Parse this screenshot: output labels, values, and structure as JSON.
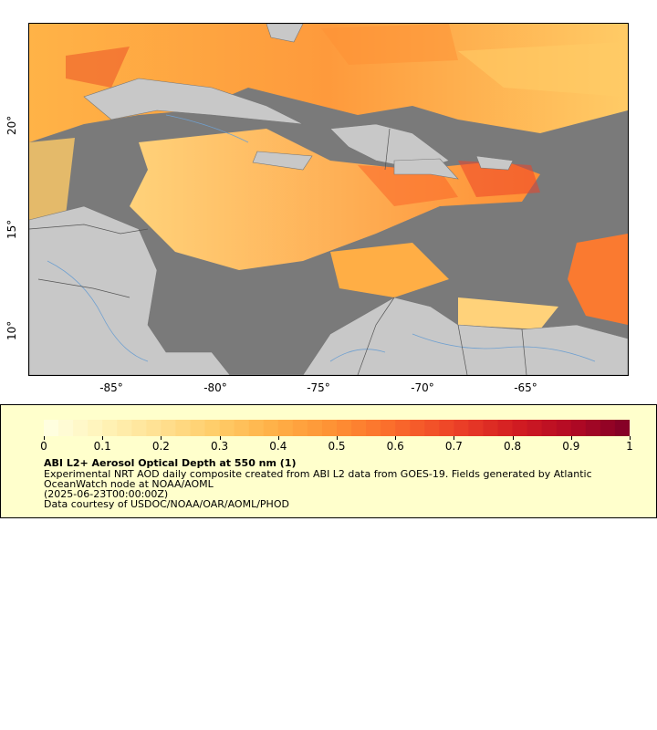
{
  "map": {
    "x_ticks": [
      "-85°",
      "-80°",
      "-75°",
      "-70°",
      "-65°"
    ],
    "y_ticks": [
      "20°",
      "15°",
      "10°"
    ],
    "lon_range": [
      -89,
      -60
    ],
    "lat_range": [
      8,
      25
    ],
    "colors": {
      "no_data": "#7a7a7a",
      "land": "#c8c8c8",
      "borders": "#555555",
      "rivers": "#6fa0d0"
    }
  },
  "legend": {
    "colorbar_labels": [
      "0",
      "0.1",
      "0.2",
      "0.3",
      "0.4",
      "0.5",
      "0.6",
      "0.7",
      "0.8",
      "0.9",
      "1"
    ],
    "colorbar_range": [
      0,
      1
    ],
    "colormap": [
      "#ffffe5",
      "#fff3b8",
      "#ffe090",
      "#ffcb66",
      "#ffae45",
      "#fe8f33",
      "#fa6a2b",
      "#ed4328",
      "#d41e22",
      "#b30924",
      "#800026"
    ],
    "title": "ABI L2+ Aerosol Optical Depth at 550 nm (1)",
    "line1": "Experimental NRT AOD daily composite created from ABI L2 data from GOES-19. Fields generated by Atlantic",
    "line2": "OceanWatch node at NOAA/AOML",
    "line3": "(2025-06-23T00:00:00Z)",
    "line4": "Data courtesy of USDOC/NOAA/OAR/AOML/PHOD"
  }
}
